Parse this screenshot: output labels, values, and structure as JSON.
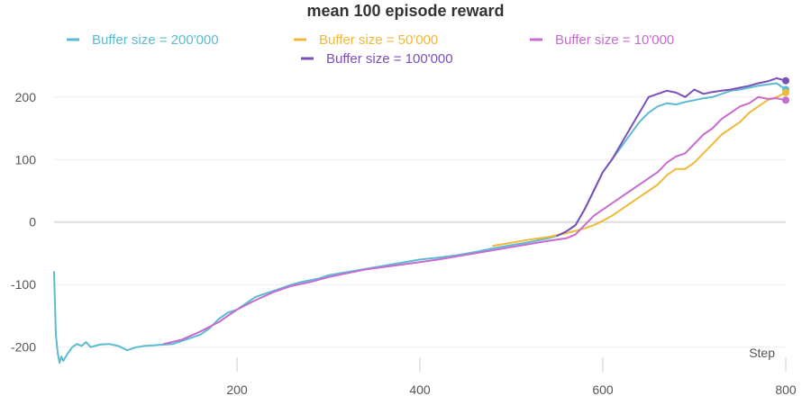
{
  "chart_data": {
    "type": "line",
    "title": "mean 100 episode reward",
    "xlabel": "Step",
    "ylabel": "",
    "xlim": [
      0,
      800
    ],
    "ylim": [
      -235,
      240
    ],
    "x_ticks": [
      200,
      400,
      600,
      800
    ],
    "y_ticks": [
      200,
      100,
      0,
      -100,
      -200
    ],
    "grid": "horizontal",
    "legend_placement": "top",
    "series": [
      {
        "name": "Buffer size = 200'000",
        "color": "#5bbcd0",
        "x": [
          0,
          2,
          4,
          6,
          8,
          10,
          15,
          20,
          25,
          30,
          35,
          40,
          50,
          60,
          70,
          80,
          90,
          100,
          110,
          120,
          130,
          140,
          150,
          160,
          170,
          180,
          190,
          200,
          210,
          220,
          230,
          240,
          250,
          260,
          270,
          280,
          290,
          300,
          320,
          340,
          360,
          380,
          400,
          420,
          440,
          460,
          480,
          500,
          520,
          540,
          550,
          560,
          570,
          580,
          590,
          600,
          610,
          620,
          630,
          640,
          650,
          660,
          670,
          680,
          690,
          700,
          710,
          720,
          730,
          740,
          750,
          760,
          770,
          780,
          790,
          800
        ],
        "y": [
          -80,
          -180,
          -210,
          -225,
          -215,
          -222,
          -210,
          -200,
          -195,
          -198,
          -192,
          -200,
          -196,
          -195,
          -198,
          -205,
          -200,
          -198,
          -197,
          -196,
          -195,
          -190,
          -185,
          -180,
          -170,
          -155,
          -145,
          -140,
          -130,
          -120,
          -115,
          -110,
          -105,
          -100,
          -96,
          -93,
          -90,
          -85,
          -80,
          -75,
          -70,
          -65,
          -60,
          -57,
          -53,
          -48,
          -42,
          -37,
          -32,
          -26,
          -22,
          -15,
          -5,
          20,
          50,
          80,
          100,
          120,
          140,
          160,
          175,
          185,
          190,
          188,
          192,
          195,
          198,
          200,
          205,
          210,
          212,
          215,
          218,
          220,
          222,
          212
        ]
      },
      {
        "name": "Buffer size = 50'000",
        "color": "#f0b93a",
        "x": [
          480,
          500,
          520,
          540,
          560,
          570,
          580,
          590,
          600,
          610,
          620,
          630,
          640,
          650,
          660,
          670,
          680,
          690,
          700,
          710,
          720,
          730,
          740,
          750,
          760,
          770,
          780,
          790,
          800
        ],
        "y": [
          -38,
          -33,
          -28,
          -24,
          -18,
          -14,
          -10,
          -5,
          2,
          10,
          20,
          30,
          40,
          50,
          60,
          75,
          85,
          85,
          95,
          110,
          125,
          140,
          150,
          160,
          175,
          185,
          195,
          200,
          207
        ]
      },
      {
        "name": "Buffer size = 10'000",
        "color": "#c86bd0",
        "x": [
          120,
          140,
          160,
          180,
          200,
          220,
          240,
          260,
          280,
          300,
          320,
          340,
          360,
          380,
          400,
          420,
          440,
          460,
          480,
          500,
          520,
          540,
          560,
          570,
          580,
          590,
          600,
          610,
          620,
          630,
          640,
          650,
          660,
          670,
          680,
          690,
          700,
          710,
          720,
          730,
          740,
          750,
          760,
          770,
          780,
          790,
          800
        ],
        "y": [
          -195,
          -188,
          -175,
          -160,
          -140,
          -125,
          -112,
          -102,
          -96,
          -88,
          -82,
          -76,
          -72,
          -68,
          -64,
          -60,
          -55,
          -50,
          -45,
          -40,
          -35,
          -30,
          -26,
          -20,
          -5,
          10,
          20,
          30,
          40,
          50,
          60,
          70,
          80,
          95,
          105,
          110,
          125,
          140,
          150,
          165,
          175,
          185,
          190,
          200,
          197,
          198,
          195
        ]
      },
      {
        "name": "Buffer size = 100'000",
        "color": "#7b4fba",
        "x": [
          550,
          560,
          570,
          580,
          590,
          600,
          610,
          620,
          630,
          640,
          650,
          660,
          670,
          680,
          690,
          700,
          710,
          720,
          730,
          740,
          750,
          760,
          770,
          780,
          790,
          800
        ],
        "y": [
          -22,
          -15,
          -5,
          20,
          50,
          80,
          100,
          125,
          150,
          175,
          200,
          205,
          210,
          207,
          200,
          212,
          205,
          208,
          210,
          212,
          215,
          218,
          222,
          225,
          230,
          226
        ]
      }
    ]
  }
}
